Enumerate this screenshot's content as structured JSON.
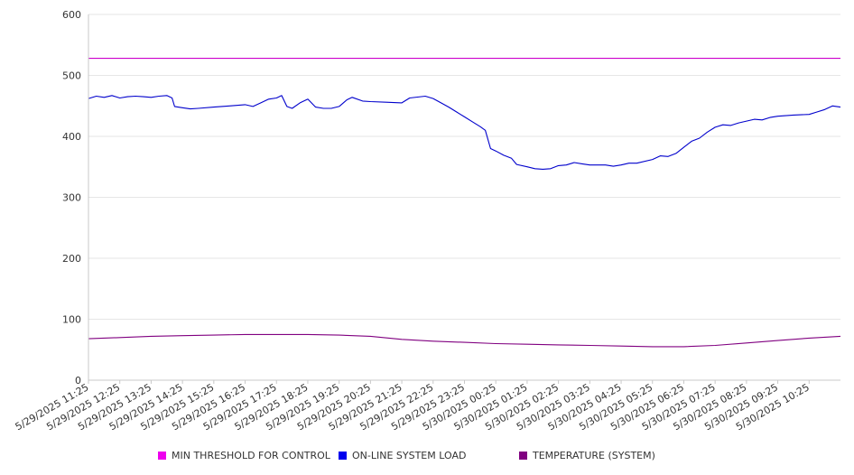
{
  "chart_data": {
    "type": "line",
    "ylim": [
      0,
      600
    ],
    "y_ticks": [
      "0",
      "100",
      "200",
      "300",
      "400",
      "500",
      "600"
    ],
    "x_tick_labels": [
      "5/29/2025 11:25",
      "5/29/2025 12:25",
      "5/29/2025 13:25",
      "5/29/2025 14:25",
      "5/29/2025 15:25",
      "5/29/2025 16:25",
      "5/29/2025 17:25",
      "5/29/2025 18:25",
      "5/29/2025 19:25",
      "5/29/2025 20:25",
      "5/29/2025 21:25",
      "5/29/2025 22:25",
      "5/29/2025 23:25",
      "5/30/2025 00:25",
      "5/30/2025 01:25",
      "5/30/2025 02:25",
      "5/30/2025 03:25",
      "5/30/2025 04:25",
      "5/30/2025 05:25",
      "5/30/2025 06:25",
      "5/30/2025 07:25",
      "5/30/2025 08:25",
      "5/30/2025 09:25",
      "5/30/2025 10:25"
    ],
    "x_range": [
      "5/29/2025 11:25",
      "5/30/2025 11:25"
    ],
    "grid": "horizontal",
    "legend_position": "bottom",
    "series": [
      {
        "name": "MIN THRESHOLD FOR CONTROL",
        "color": "#cc00cc",
        "points": [
          [
            "5/29/2025 11:25",
            528
          ],
          [
            "5/30/2025 11:25",
            528
          ]
        ]
      },
      {
        "name": "ON-LINE SYSTEM LOAD",
        "color": "#0000cc",
        "points": [
          [
            "5/29/2025 11:25",
            462
          ],
          [
            "5/29/2025 11:40",
            466
          ],
          [
            "5/29/2025 11:55",
            464
          ],
          [
            "5/29/2025 12:10",
            467
          ],
          [
            "5/29/2025 12:25",
            463
          ],
          [
            "5/29/2025 12:40",
            465
          ],
          [
            "5/29/2025 12:55",
            466
          ],
          [
            "5/29/2025 13:10",
            465
          ],
          [
            "5/29/2025 13:25",
            464
          ],
          [
            "5/29/2025 13:40",
            466
          ],
          [
            "5/29/2025 13:55",
            467
          ],
          [
            "5/29/2025 14:05",
            463
          ],
          [
            "5/29/2025 14:10",
            449
          ],
          [
            "5/29/2025 14:25",
            447
          ],
          [
            "5/29/2025 14:40",
            445
          ],
          [
            "5/29/2025 14:55",
            446
          ],
          [
            "5/29/2025 15:25",
            448
          ],
          [
            "5/29/2025 15:55",
            450
          ],
          [
            "5/29/2025 16:25",
            452
          ],
          [
            "5/29/2025 16:40",
            449
          ],
          [
            "5/29/2025 16:55",
            455
          ],
          [
            "5/29/2025 17:10",
            461
          ],
          [
            "5/29/2025 17:25",
            463
          ],
          [
            "5/29/2025 17:35",
            467
          ],
          [
            "5/29/2025 17:45",
            449
          ],
          [
            "5/29/2025 17:55",
            446
          ],
          [
            "5/29/2025 18:10",
            455
          ],
          [
            "5/29/2025 18:25",
            461
          ],
          [
            "5/29/2025 18:40",
            448
          ],
          [
            "5/29/2025 18:55",
            446
          ],
          [
            "5/29/2025 19:10",
            446
          ],
          [
            "5/29/2025 19:25",
            449
          ],
          [
            "5/29/2025 19:40",
            460
          ],
          [
            "5/29/2025 19:50",
            464
          ],
          [
            "5/29/2025 20:10",
            458
          ],
          [
            "5/29/2025 20:25",
            457
          ],
          [
            "5/29/2025 20:55",
            456
          ],
          [
            "5/29/2025 21:25",
            455
          ],
          [
            "5/29/2025 21:40",
            463
          ],
          [
            "5/29/2025 22:10",
            466
          ],
          [
            "5/29/2025 22:25",
            462
          ],
          [
            "5/29/2025 22:40",
            455
          ],
          [
            "5/29/2025 22:55",
            448
          ],
          [
            "5/29/2025 23:10",
            440
          ],
          [
            "5/29/2025 23:25",
            432
          ],
          [
            "5/29/2025 23:40",
            424
          ],
          [
            "5/29/2025 23:55",
            416
          ],
          [
            "5/30/2025 00:05",
            410
          ],
          [
            "5/30/2025 00:15",
            380
          ],
          [
            "5/30/2025 00:25",
            376
          ],
          [
            "5/30/2025 00:40",
            369
          ],
          [
            "5/30/2025 00:55",
            364
          ],
          [
            "5/30/2025 01:05",
            354
          ],
          [
            "5/30/2025 01:25",
            350
          ],
          [
            "5/30/2025 01:40",
            347
          ],
          [
            "5/30/2025 01:55",
            346
          ],
          [
            "5/30/2025 02:10",
            347
          ],
          [
            "5/30/2025 02:25",
            352
          ],
          [
            "5/30/2025 02:40",
            353
          ],
          [
            "5/30/2025 02:55",
            357
          ],
          [
            "5/30/2025 03:10",
            355
          ],
          [
            "5/30/2025 03:25",
            353
          ],
          [
            "5/30/2025 03:55",
            353
          ],
          [
            "5/30/2025 04:10",
            351
          ],
          [
            "5/30/2025 04:25",
            353
          ],
          [
            "5/30/2025 04:40",
            356
          ],
          [
            "5/30/2025 04:55",
            356
          ],
          [
            "5/30/2025 05:25",
            362
          ],
          [
            "5/30/2025 05:40",
            368
          ],
          [
            "5/30/2025 05:55",
            367
          ],
          [
            "5/30/2025 06:10",
            372
          ],
          [
            "5/30/2025 06:25",
            382
          ],
          [
            "5/30/2025 06:40",
            392
          ],
          [
            "5/30/2025 06:55",
            397
          ],
          [
            "5/30/2025 07:10",
            407
          ],
          [
            "5/30/2025 07:25",
            415
          ],
          [
            "5/30/2025 07:40",
            419
          ],
          [
            "5/30/2025 07:55",
            418
          ],
          [
            "5/30/2025 08:10",
            422
          ],
          [
            "5/30/2025 08:25",
            425
          ],
          [
            "5/30/2025 08:40",
            428
          ],
          [
            "5/30/2025 08:55",
            427
          ],
          [
            "5/30/2025 09:10",
            431
          ],
          [
            "5/30/2025 09:25",
            433
          ],
          [
            "5/30/2025 09:55",
            435
          ],
          [
            "5/30/2025 10:25",
            436
          ],
          [
            "5/30/2025 10:40",
            440
          ],
          [
            "5/30/2025 10:55",
            444
          ],
          [
            "5/30/2025 11:10",
            450
          ],
          [
            "5/30/2025 11:25",
            448
          ]
        ]
      },
      {
        "name": "TEMPERATURE (SYSTEM)",
        "color": "#800080",
        "points": [
          [
            "5/29/2025 11:25",
            68
          ],
          [
            "5/29/2025 12:25",
            70
          ],
          [
            "5/29/2025 13:25",
            72
          ],
          [
            "5/29/2025 14:25",
            73
          ],
          [
            "5/29/2025 15:25",
            74
          ],
          [
            "5/29/2025 16:25",
            75
          ],
          [
            "5/29/2025 17:25",
            75
          ],
          [
            "5/29/2025 18:25",
            75
          ],
          [
            "5/29/2025 19:25",
            74
          ],
          [
            "5/29/2025 20:25",
            72
          ],
          [
            "5/29/2025 21:25",
            67
          ],
          [
            "5/29/2025 22:25",
            64
          ],
          [
            "5/29/2025 23:25",
            62
          ],
          [
            "5/30/2025 00:25",
            60
          ],
          [
            "5/30/2025 01:25",
            59
          ],
          [
            "5/30/2025 02:25",
            58
          ],
          [
            "5/30/2025 03:25",
            57
          ],
          [
            "5/30/2025 04:25",
            56
          ],
          [
            "5/30/2025 05:25",
            55
          ],
          [
            "5/30/2025 06:25",
            55
          ],
          [
            "5/30/2025 07:25",
            57
          ],
          [
            "5/30/2025 08:25",
            61
          ],
          [
            "5/30/2025 09:25",
            65
          ],
          [
            "5/30/2025 10:25",
            69
          ],
          [
            "5/30/2025 11:25",
            72
          ]
        ]
      }
    ]
  }
}
